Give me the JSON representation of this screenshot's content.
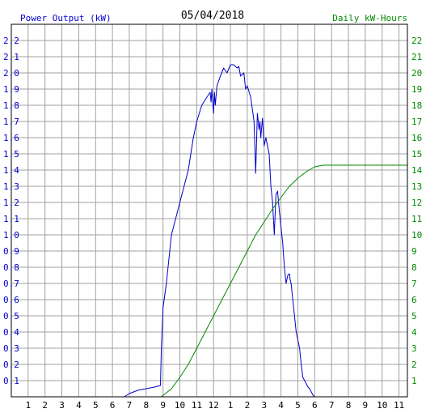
{
  "chart_data": {
    "type": "line",
    "title": "05/04/2018",
    "left_axis_label": "Power Output (kW)",
    "right_axis_label": "Daily kW-Hours",
    "x_ticks": [
      "1",
      "2",
      "3",
      "4",
      "5",
      "6",
      "7",
      "8",
      "9",
      "10",
      "11",
      "12",
      "1",
      "2",
      "3",
      "4",
      "5",
      "6",
      "7",
      "8",
      "9",
      "10",
      "11"
    ],
    "left_ticks": [
      "0.1",
      "0.2",
      "0.3",
      "0.4",
      "0.5",
      "0.6",
      "0.7",
      "0.8",
      "0.9",
      "1.0",
      "1.1",
      "1.2",
      "1.3",
      "1.4",
      "1.5",
      "1.6",
      "1.7",
      "1.8",
      "1.9",
      "2.0",
      "2.1",
      "2.2"
    ],
    "right_ticks": [
      "1",
      "2",
      "3",
      "4",
      "5",
      "6",
      "7",
      "8",
      "9",
      "10",
      "11",
      "12",
      "13",
      "14",
      "15",
      "16",
      "17",
      "18",
      "19",
      "20",
      "21",
      "22"
    ],
    "x_range_hours": [
      0,
      23.5
    ],
    "left_ylim": [
      0,
      2.3
    ],
    "right_ylim": [
      0,
      23
    ],
    "grid": true,
    "colors": {
      "power": "#0000cc",
      "energy": "#008800",
      "grid": "#a0a0a0",
      "axis": "#000000"
    },
    "series": [
      {
        "axis": "left",
        "color": "#0000cc",
        "x": [
          6.7,
          7.0,
          7.5,
          8.0,
          8.5,
          8.85,
          8.9,
          9.0,
          9.2,
          9.5,
          10.0,
          10.5,
          10.8,
          11.0,
          11.3,
          11.6,
          11.8,
          11.85,
          11.9,
          12.0,
          12.05,
          12.1,
          12.2,
          12.4,
          12.6,
          12.8,
          13.0,
          13.2,
          13.4,
          13.5,
          13.6,
          13.8,
          13.9,
          14.0,
          14.2,
          14.4,
          14.5,
          14.6,
          14.7,
          14.75,
          14.8,
          14.9,
          15.0,
          15.1,
          15.2,
          15.3,
          15.4,
          15.5,
          15.6,
          15.7,
          15.8,
          15.9,
          16.0,
          16.1,
          16.2,
          16.3,
          16.4,
          16.5,
          16.55,
          16.6,
          16.7,
          16.8,
          16.9,
          17.0,
          17.1,
          17.2,
          17.3,
          17.4,
          17.5,
          17.6,
          17.7,
          17.8,
          17.9,
          18.0,
          18.1,
          18.3,
          18.5,
          18.7,
          18.9,
          19.1,
          19.3,
          19.5,
          19.7,
          19.8,
          20.0,
          20.2,
          20.3,
          20.4
        ],
        "y": [
          0.0,
          0.02,
          0.04,
          0.05,
          0.06,
          0.07,
          0.3,
          0.55,
          0.7,
          1.0,
          1.2,
          1.4,
          1.6,
          1.7,
          1.8,
          1.85,
          1.88,
          1.82,
          1.9,
          1.75,
          1.88,
          1.8,
          1.92,
          1.98,
          2.03,
          2.0,
          2.05,
          2.05,
          2.03,
          2.04,
          1.98,
          2.0,
          1.9,
          1.92,
          1.85,
          1.7,
          1.38,
          1.75,
          1.65,
          1.7,
          1.6,
          1.72,
          1.55,
          1.6,
          1.55,
          1.5,
          1.3,
          1.2,
          1.0,
          1.25,
          1.27,
          1.15,
          1.05,
          0.95,
          0.8,
          0.7,
          0.75,
          0.76,
          0.72,
          0.7,
          0.6,
          0.5,
          0.4,
          0.35,
          0.3,
          0.2,
          0.12,
          0.1,
          0.08,
          0.06,
          0.05,
          0.03,
          0.01,
          0.0,
          0.0,
          0.0,
          0.0,
          0.0,
          0.0,
          0.0,
          0.0,
          0.0,
          0.0,
          0.0,
          0.0,
          0.0,
          0.0,
          0.0
        ]
      },
      {
        "axis": "right",
        "color": "#008800",
        "x": [
          0.0,
          8.9,
          9.5,
          10.0,
          10.5,
          11.0,
          11.5,
          12.0,
          12.5,
          13.0,
          13.5,
          14.0,
          14.5,
          15.0,
          15.5,
          16.0,
          16.5,
          17.0,
          17.5,
          18.0,
          18.5,
          19.0,
          19.5,
          20.0,
          21.0,
          22.0,
          23.5
        ],
        "y": [
          0.0,
          0.0,
          0.5,
          1.2,
          2.0,
          3.0,
          4.0,
          5.0,
          6.0,
          7.0,
          8.0,
          9.0,
          10.0,
          10.8,
          11.6,
          12.3,
          13.0,
          13.5,
          13.9,
          14.2,
          14.3,
          14.3,
          14.3,
          14.3,
          14.3,
          14.3,
          14.3
        ]
      }
    ]
  }
}
